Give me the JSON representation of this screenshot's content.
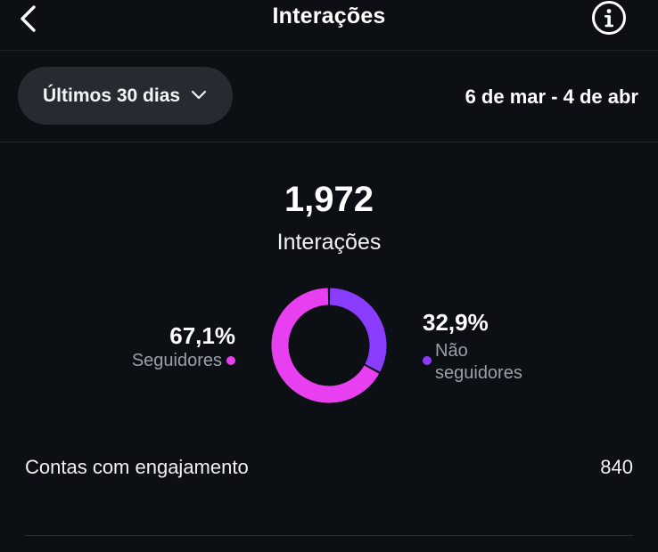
{
  "header": {
    "title": "Interações",
    "back_icon": "chevron-left-icon",
    "info_icon": "info-circle-icon"
  },
  "filter": {
    "period_label": "Últimos 30 dias",
    "period_icon": "chevron-down-icon",
    "date_range": "6 de mar - 4 de abr"
  },
  "summary": {
    "total_value": "1,972",
    "total_label": "Interações"
  },
  "breakdown": {
    "followers": {
      "percent_text": "67,1%",
      "label": "Seguidores",
      "fraction": 0.671,
      "color": "#e83ff0"
    },
    "non_followers": {
      "percent_text": "32,9%",
      "label": "Não seguidores",
      "fraction": 0.329,
      "color": "#8a3dff"
    }
  },
  "metrics": [
    {
      "label": "Contas com engajamento",
      "value": "840"
    }
  ],
  "colors": {
    "background": "#0c0f14",
    "pill": "#262b31",
    "muted_text": "#9aa0a8"
  }
}
